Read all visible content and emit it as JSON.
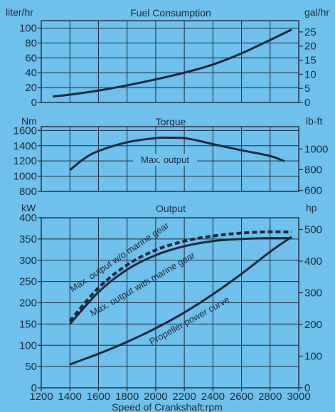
{
  "colors": {
    "background": "#6fc0ea",
    "ink": "#1e2a3a"
  },
  "x_axis": {
    "label": "Speed of Crankshaft:rpm",
    "ticks": [
      "1200",
      "1400",
      "1600",
      "1800",
      "2000",
      "2200",
      "2400",
      "2600",
      "2800",
      "3000"
    ]
  },
  "chart_data": [
    {
      "type": "line",
      "title": "Fuel Consumption",
      "ylabel_left": "liter/hr",
      "ylabel_right": "gal/hr",
      "xlim": [
        1200,
        3000
      ],
      "ylim": [
        0,
        110
      ],
      "left_ticks": [
        "100",
        "80",
        "60",
        "40",
        "20",
        "0"
      ],
      "right_ticks": [
        "25",
        "20",
        "15",
        "10",
        "5",
        "0"
      ],
      "right_lim": [
        0,
        29
      ],
      "grid": true,
      "series": [
        {
          "style": "solid",
          "x": [
            1280,
            1400,
            1600,
            1800,
            2000,
            2200,
            2400,
            2600,
            2800,
            2950
          ],
          "y": [
            8,
            10.5,
            16,
            23,
            31,
            40,
            51,
            66,
            84,
            98
          ]
        }
      ]
    },
    {
      "type": "line",
      "title": "Torque",
      "ylabel_left": "Nm",
      "ylabel_right": "lb-ft",
      "xlim": [
        1200,
        3000
      ],
      "ylim": [
        800,
        1650
      ],
      "left_ticks": [
        "1600",
        "1400",
        "1200",
        "1000",
        "800"
      ],
      "right_ticks": [
        "1000",
        "800",
        "600"
      ],
      "right_lim": [
        590,
        1215
      ],
      "grid": true,
      "annotations": [
        "Max. output"
      ],
      "series": [
        {
          "style": "solid",
          "x": [
            1400,
            1500,
            1600,
            1800,
            2000,
            2100,
            2200,
            2300,
            2400,
            2600,
            2800,
            2900
          ],
          "y": [
            1080,
            1230,
            1330,
            1445,
            1500,
            1505,
            1500,
            1465,
            1420,
            1340,
            1265,
            1195
          ]
        }
      ]
    },
    {
      "type": "line",
      "title": "Output",
      "ylabel_left": "kW",
      "ylabel_right": "hp",
      "xlim": [
        1200,
        3000
      ],
      "ylim": [
        0,
        400
      ],
      "left_ticks": [
        "400",
        "350",
        "300",
        "250",
        "200",
        "150",
        "100",
        "50",
        "0"
      ],
      "right_ticks": [
        "500",
        "400",
        "300",
        "200",
        "100",
        "0"
      ],
      "right_lim": [
        0,
        537
      ],
      "grid": true,
      "annotations": [
        "Max. output w/o marine gear",
        "Max. output with marine gear",
        "Propeller power curve"
      ],
      "series": [
        {
          "name": "Max. output w/o marine gear",
          "style": "dashed",
          "x": [
            1400,
            1600,
            1800,
            2000,
            2200,
            2400,
            2600,
            2800,
            2950
          ],
          "y": [
            157,
            235,
            289,
            324,
            345,
            357,
            364,
            367,
            366
          ]
        },
        {
          "name": "Max. output with marine gear",
          "style": "solid",
          "x": [
            1400,
            1600,
            1800,
            2000,
            2200,
            2400,
            2600,
            2800,
            2950
          ],
          "y": [
            150,
            225,
            278,
            312,
            333,
            345,
            350,
            352,
            352
          ]
        },
        {
          "name": "Propeller power curve",
          "style": "solid",
          "x": [
            1400,
            1600,
            1800,
            2000,
            2200,
            2400,
            2600,
            2800,
            2950
          ],
          "y": [
            55,
            80,
            108,
            140,
            177,
            220,
            268,
            320,
            355
          ]
        }
      ]
    }
  ]
}
